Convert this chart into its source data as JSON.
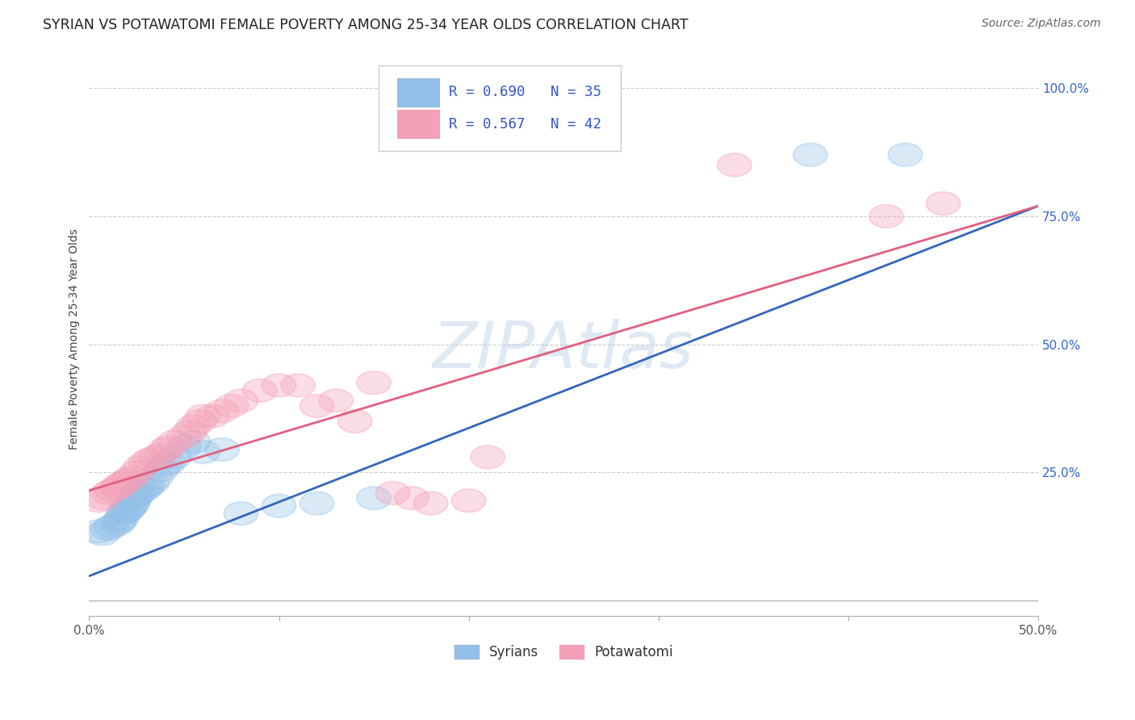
{
  "title": "SYRIAN VS POTAWATOMI FEMALE POVERTY AMONG 25-34 YEAR OLDS CORRELATION CHART",
  "source": "Source: ZipAtlas.com",
  "ylabel": "Female Poverty Among 25-34 Year Olds",
  "xlim": [
    0.0,
    0.5
  ],
  "ylim": [
    -0.03,
    1.05
  ],
  "y_ticks": [
    0.0,
    0.25,
    0.5,
    0.75,
    1.0
  ],
  "y_tick_labels": [
    "",
    "25.0%",
    "50.0%",
    "75.0%",
    "100.0%"
  ],
  "syrian_color": "#92c0e8",
  "potawatomi_color": "#f4a0b8",
  "syrian_line_color": "#3366bb",
  "potawatomi_line_color": "#e06080",
  "legend_text_color": "#3355cc",
  "legend_R_syrian": "R = 0.690",
  "legend_N_syrian": "N = 35",
  "legend_R_potawatomi": "R = 0.567",
  "legend_N_potawatomi": "N = 42",
  "watermark": "ZIPAtlas",
  "background_color": "#ffffff",
  "grid_color": "#cccccc",
  "syrian_x": [
    0.005,
    0.007,
    0.01,
    0.012,
    0.015,
    0.016,
    0.017,
    0.018,
    0.019,
    0.02,
    0.021,
    0.022,
    0.023,
    0.024,
    0.025,
    0.026,
    0.028,
    0.03,
    0.031,
    0.033,
    0.035,
    0.038,
    0.04,
    0.042,
    0.045,
    0.05,
    0.055,
    0.06,
    0.07,
    0.08,
    0.1,
    0.12,
    0.15,
    0.38,
    0.43
  ],
  "syrian_y": [
    0.135,
    0.13,
    0.14,
    0.145,
    0.15,
    0.155,
    0.16,
    0.17,
    0.175,
    0.175,
    0.18,
    0.185,
    0.19,
    0.2,
    0.205,
    0.21,
    0.215,
    0.22,
    0.225,
    0.23,
    0.24,
    0.255,
    0.265,
    0.27,
    0.28,
    0.3,
    0.31,
    0.29,
    0.295,
    0.17,
    0.185,
    0.19,
    0.2,
    0.87,
    0.87
  ],
  "potawatomi_x": [
    0.005,
    0.007,
    0.01,
    0.012,
    0.015,
    0.016,
    0.018,
    0.02,
    0.022,
    0.025,
    0.027,
    0.03,
    0.032,
    0.035,
    0.038,
    0.04,
    0.042,
    0.045,
    0.05,
    0.053,
    0.055,
    0.058,
    0.06,
    0.065,
    0.07,
    0.075,
    0.08,
    0.09,
    0.1,
    0.11,
    0.12,
    0.13,
    0.14,
    0.15,
    0.16,
    0.17,
    0.18,
    0.2,
    0.21,
    0.34,
    0.42,
    0.45
  ],
  "potawatomi_y": [
    0.195,
    0.2,
    0.21,
    0.215,
    0.22,
    0.225,
    0.23,
    0.235,
    0.24,
    0.25,
    0.26,
    0.27,
    0.275,
    0.28,
    0.285,
    0.295,
    0.3,
    0.31,
    0.32,
    0.33,
    0.34,
    0.35,
    0.36,
    0.36,
    0.37,
    0.38,
    0.39,
    0.41,
    0.42,
    0.42,
    0.38,
    0.39,
    0.35,
    0.425,
    0.21,
    0.2,
    0.19,
    0.195,
    0.28,
    0.85,
    0.75,
    0.775
  ]
}
